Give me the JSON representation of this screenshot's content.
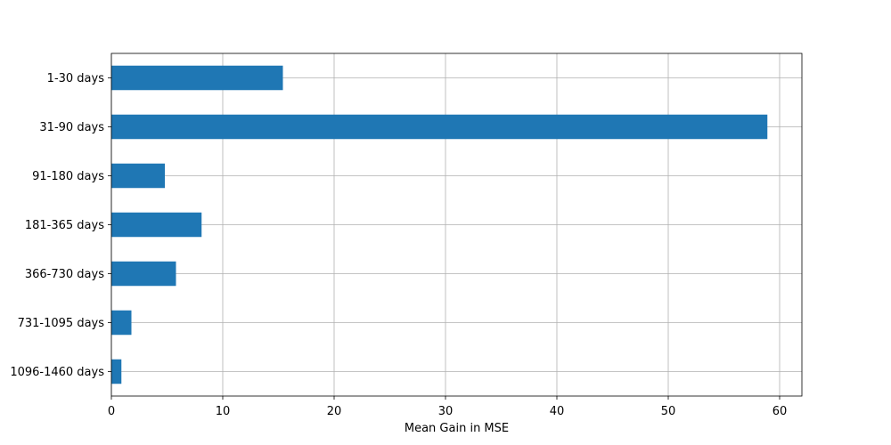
{
  "chart_data": {
    "type": "bar",
    "orientation": "horizontal",
    "categories": [
      "1-30 days",
      "31-90 days",
      "91-180 days",
      "181-365 days",
      "366-730 days",
      "731-1095 days",
      "1096-1460 days"
    ],
    "values": [
      15.4,
      58.9,
      4.8,
      8.1,
      5.8,
      1.8,
      0.9
    ],
    "title": "",
    "xlabel": "Mean Gain in MSE",
    "ylabel": "",
    "xlim": [
      0,
      62
    ],
    "xticks": [
      0,
      10,
      20,
      30,
      40,
      50,
      60
    ],
    "grid": true,
    "legend": "none",
    "bar_color": "#1f77b4"
  }
}
